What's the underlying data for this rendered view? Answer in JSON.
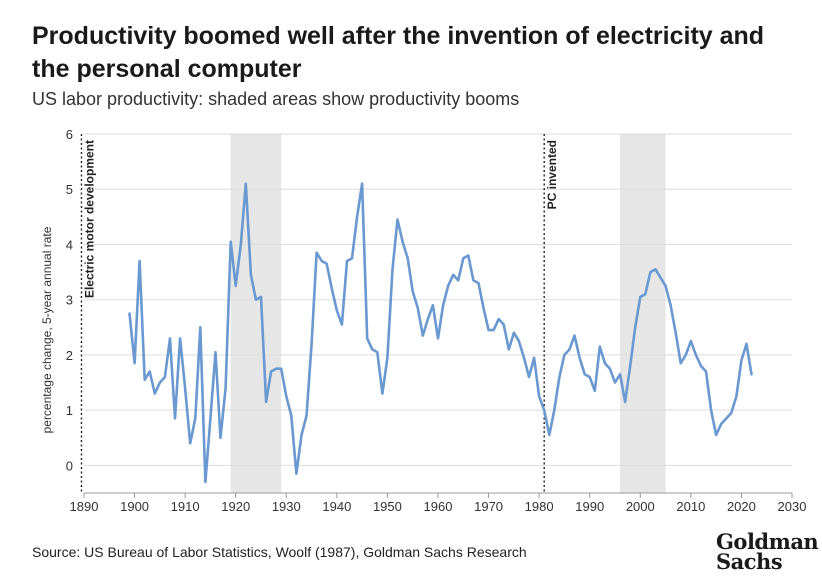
{
  "header": {
    "title": "Productivity boomed well after the invention of electricity and the personal computer",
    "subtitle": "US labor productivity: shaded areas show productivity booms"
  },
  "footer": {
    "source": "Source: US Bureau of Labor Statistics, Woolf (1987), Goldman Sachs Research",
    "logo_line1": "Goldman",
    "logo_line2": "Sachs"
  },
  "chart_data": {
    "type": "line",
    "title": "Productivity boomed well after the invention of electricity and the personal computer",
    "subtitle": "US labor productivity: shaded areas show productivity booms",
    "xlabel": "",
    "ylabel": "percentage change, 5-year annual rate",
    "xlim": [
      1890,
      2030
    ],
    "ylim": [
      -0.5,
      6
    ],
    "x_ticks": [
      1890,
      1900,
      1910,
      1920,
      1930,
      1940,
      1950,
      1960,
      1970,
      1980,
      1990,
      2000,
      2010,
      2020,
      2030
    ],
    "y_ticks": [
      0,
      1,
      2,
      3,
      4,
      5,
      6
    ],
    "grid": "horizontal",
    "line_color": "#6a98d0",
    "shade_color": "#e6e6e6",
    "shaded_periods": [
      [
        1919,
        1929
      ],
      [
        1996,
        2005
      ]
    ],
    "events": [
      {
        "x": 1889.5,
        "label": "Electric motor development"
      },
      {
        "x": 1981,
        "label": "PC invented"
      }
    ],
    "series": [
      {
        "x": [
          1899,
          1900,
          1901,
          1902,
          1903,
          1904,
          1905,
          1906,
          1907,
          1908,
          1909,
          1910,
          1911,
          1912,
          1913,
          1914,
          1915,
          1916,
          1917,
          1918,
          1919,
          1920,
          1921,
          1922,
          1923,
          1924,
          1925,
          1926,
          1927,
          1928,
          1929,
          1930,
          1931,
          1932,
          1933,
          1934,
          1935,
          1936,
          1937,
          1938,
          1939,
          1940,
          1941,
          1942,
          1943,
          1944,
          1945,
          1946,
          1947,
          1948,
          1949,
          1950,
          1951,
          1952,
          1953,
          1954,
          1955,
          1956,
          1957,
          1958,
          1959,
          1960,
          1961,
          1962,
          1963,
          1964,
          1965,
          1966,
          1967,
          1968,
          1969,
          1970,
          1971,
          1972,
          1973,
          1974,
          1975,
          1976,
          1977,
          1978,
          1979,
          1980,
          1981,
          1982,
          1983,
          1984,
          1985,
          1986,
          1987,
          1988,
          1989,
          1990,
          1991,
          1992,
          1993,
          1994,
          1995,
          1996,
          1997,
          1998,
          1999,
          2000,
          2001,
          2002,
          2003,
          2004,
          2005,
          2006,
          2007,
          2008,
          2009,
          2010,
          2011,
          2012,
          2013,
          2014,
          2015,
          2016,
          2017,
          2018,
          2019,
          2020,
          2021,
          2022
        ],
        "values": [
          2.75,
          1.85,
          3.7,
          1.55,
          1.7,
          1.3,
          1.5,
          1.6,
          2.3,
          0.85,
          2.3,
          1.4,
          0.4,
          0.85,
          2.5,
          -0.3,
          0.85,
          2.05,
          0.5,
          1.4,
          4.05,
          3.25,
          4.0,
          5.1,
          3.45,
          3.0,
          3.05,
          1.15,
          1.7,
          1.75,
          1.75,
          1.25,
          0.9,
          -0.15,
          0.55,
          0.9,
          2.2,
          3.85,
          3.7,
          3.65,
          3.2,
          2.8,
          2.55,
          3.7,
          3.75,
          4.5,
          5.1,
          2.3,
          2.1,
          2.05,
          1.3,
          1.95,
          3.55,
          4.45,
          4.05,
          3.75,
          3.15,
          2.85,
          2.35,
          2.65,
          2.9,
          2.3,
          2.9,
          3.25,
          3.45,
          3.35,
          3.75,
          3.8,
          3.35,
          3.3,
          2.85,
          2.45,
          2.45,
          2.65,
          2.55,
          2.1,
          2.4,
          2.25,
          1.95,
          1.6,
          1.95,
          1.25,
          1.0,
          0.55,
          1.0,
          1.6,
          2.0,
          2.1,
          2.35,
          1.95,
          1.65,
          1.6,
          1.35,
          2.15,
          1.85,
          1.75,
          1.5,
          1.65,
          1.15,
          1.8,
          2.5,
          3.05,
          3.1,
          3.5,
          3.55,
          3.4,
          3.25,
          2.9,
          2.4,
          1.85,
          2.0,
          2.25,
          2.0,
          1.8,
          1.7,
          1.0,
          0.55,
          0.75,
          0.85,
          0.95,
          1.25,
          1.9,
          2.2,
          1.65
        ]
      }
    ]
  }
}
